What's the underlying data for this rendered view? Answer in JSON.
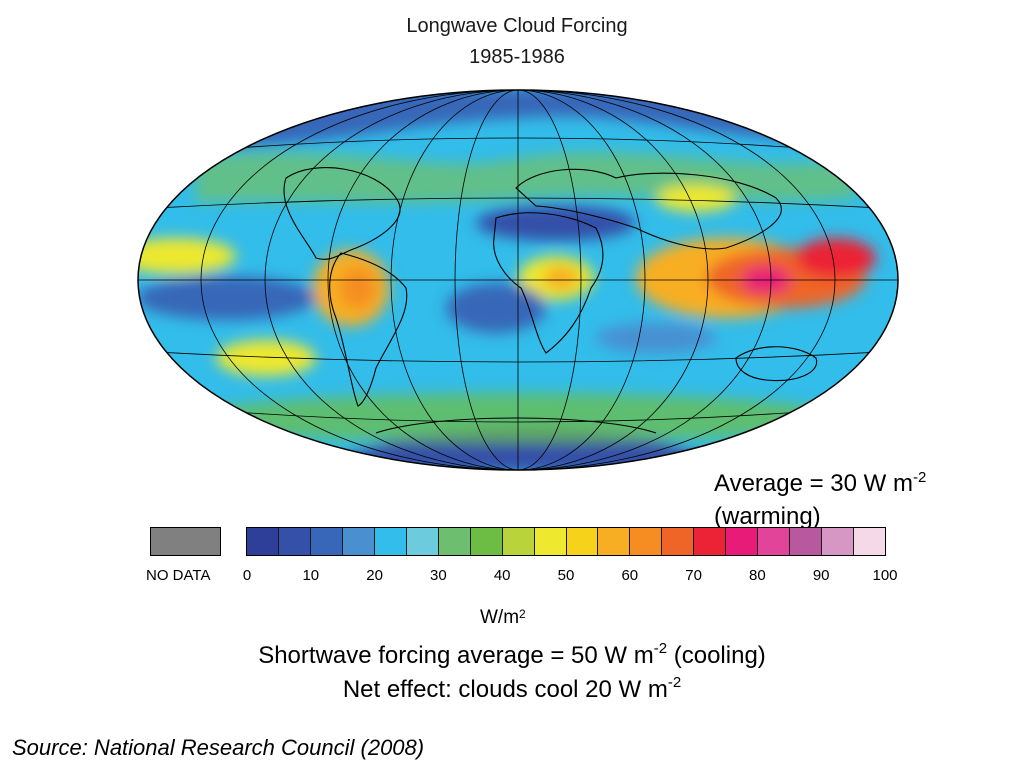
{
  "title": "Longwave Cloud Forcing",
  "period": "1985-1986",
  "average": {
    "line1_prefix": "Average = 30 W m",
    "line1_sup": "-2",
    "line2": "(warming)"
  },
  "legend": {
    "nodata_label": "NO DATA",
    "nodata_color": "#808080",
    "colors": [
      "#2e3f99",
      "#3550a8",
      "#3866b8",
      "#4a8fd0",
      "#33bdea",
      "#6ccbdc",
      "#6dbf6f",
      "#6dbd45",
      "#b9d43a",
      "#eee82f",
      "#f7d21a",
      "#f8ae22",
      "#f58d22",
      "#ef6527",
      "#ec2235",
      "#e81c78",
      "#e2449a",
      "#b859a0",
      "#d697c4",
      "#f5d9e8"
    ],
    "ticks": [
      "0",
      "10",
      "20",
      "30",
      "40",
      "50",
      "60",
      "70",
      "80",
      "90",
      "100"
    ],
    "unit": "W/m",
    "unit_sup": "2"
  },
  "footer": {
    "shortwave_prefix": "Shortwave forcing average = 50 W m",
    "shortwave_sup": "-2",
    "shortwave_suffix": " (cooling)",
    "net_prefix": "Net effect:  clouds cool 20 W m",
    "net_sup": "-2"
  },
  "source": "Source:  National Research Council (2008)"
}
